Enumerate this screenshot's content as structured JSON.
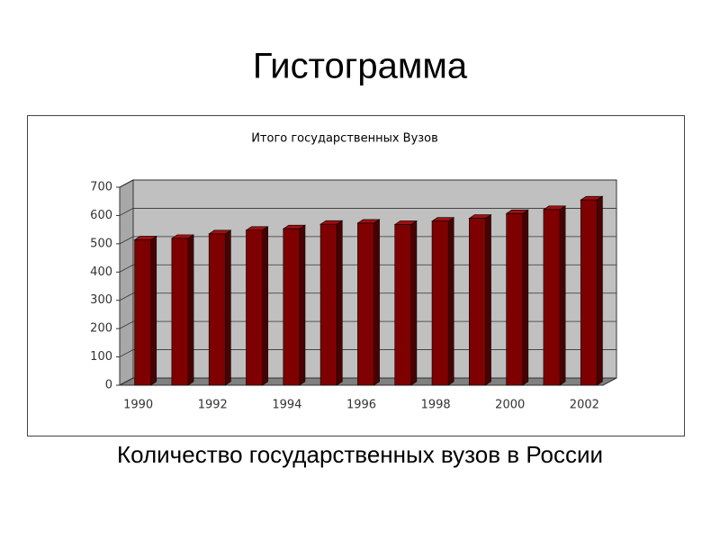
{
  "slide": {
    "title": "Гистограмма",
    "caption": "Количество государственных вузов в России"
  },
  "chart_data": {
    "type": "bar3d",
    "title": "Итого государственных Вузов",
    "categories": [
      "1990",
      null,
      "1992",
      null,
      "1994",
      null,
      "1996",
      null,
      "1998",
      null,
      "2000",
      null,
      "2002"
    ],
    "values": [
      514,
      519,
      535,
      548,
      553,
      569,
      573,
      568,
      580,
      590,
      607,
      621,
      655
    ],
    "color": "#7f0000",
    "ylim": [
      0,
      700
    ],
    "yticks": [
      0,
      100,
      200,
      300,
      400,
      500,
      600,
      700
    ],
    "grid": true
  }
}
